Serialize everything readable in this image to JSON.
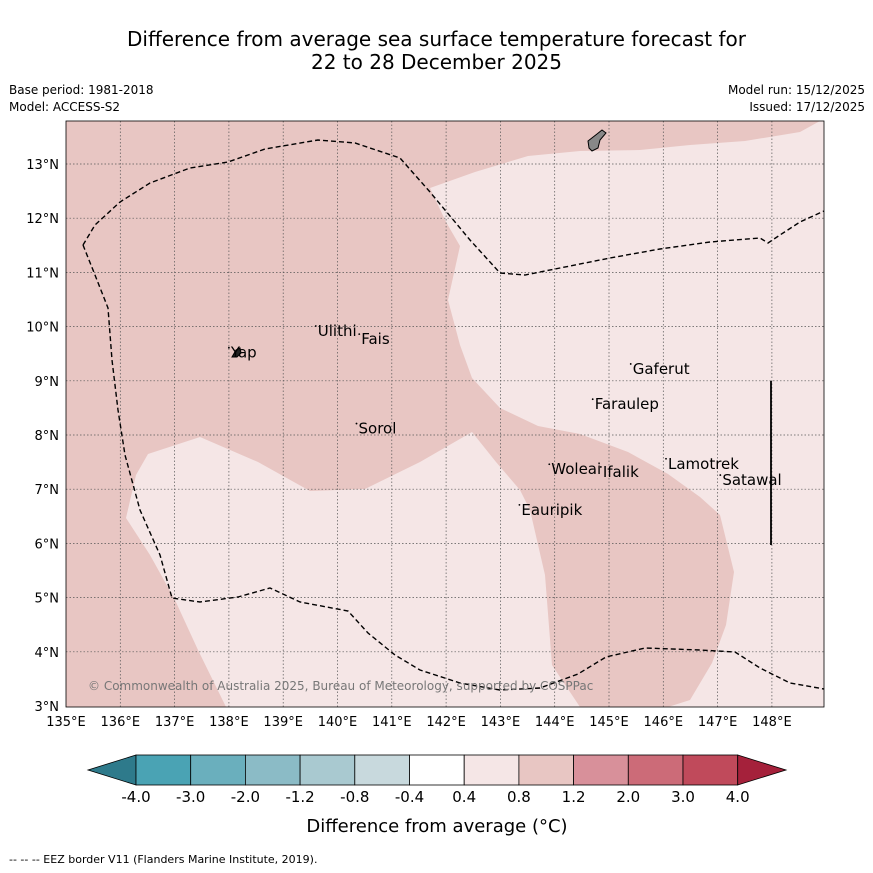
{
  "title": {
    "line1": "Difference from average sea surface temperature forecast for",
    "line2": "22 to 28 December 2025"
  },
  "meta": {
    "base_period": "Base period: 1981-2018",
    "model": "Model: ACCESS-S2",
    "model_run": "Model run: 15/12/2025",
    "issued": "Issued: 17/12/2025"
  },
  "map": {
    "lon_ticks": [
      "135°E",
      "136°E",
      "137°E",
      "138°E",
      "139°E",
      "140°E",
      "141°E",
      "142°E",
      "143°E",
      "144°E",
      "145°E",
      "146°E",
      "147°E",
      "148°E"
    ],
    "lat_ticks": [
      "3°N",
      "4°N",
      "5°N",
      "6°N",
      "7°N",
      "8°N",
      "9°N",
      "10°N",
      "11°N",
      "12°N",
      "13°N"
    ],
    "lon_range": [
      135,
      149
    ],
    "lat_range": [
      3,
      13.8
    ],
    "places": [
      {
        "name": "Yap",
        "lon": 138.0,
        "lat": 9.5
      },
      {
        "name": "Ulithi",
        "lon": 139.6,
        "lat": 9.9
      },
      {
        "name": "Fais",
        "lon": 140.4,
        "lat": 9.75
      },
      {
        "name": "Sorol",
        "lon": 140.35,
        "lat": 8.1
      },
      {
        "name": "Gaferut",
        "lon": 145.4,
        "lat": 9.2
      },
      {
        "name": "Faraulep",
        "lon": 144.7,
        "lat": 8.55
      },
      {
        "name": "Woleai",
        "lon": 143.9,
        "lat": 7.35
      },
      {
        "name": "Ifalik",
        "lon": 144.85,
        "lat": 7.3
      },
      {
        "name": "Lamotrek",
        "lon": 146.05,
        "lat": 7.45
      },
      {
        "name": "Satawal",
        "lon": 147.05,
        "lat": 7.15
      },
      {
        "name": "Eauripik",
        "lon": 143.35,
        "lat": 6.6
      }
    ],
    "copyright": "© Commonwealth of Australia 2025, Bureau of Meteorology, supported by COSPPac"
  },
  "legend": {
    "labels": [
      "-4.0",
      "-3.0",
      "-2.0",
      "-1.2",
      "-0.8",
      "-0.4",
      "0.4",
      "0.8",
      "1.2",
      "2.0",
      "3.0",
      "4.0"
    ],
    "colors": [
      "#2e7a8b",
      "#4aa3b4",
      "#6aafbd",
      "#8bbbc6",
      "#a9c9d0",
      "#c8d9dd",
      "#ffffff",
      "#f5e6e6",
      "#e8c6c3",
      "#d8909a",
      "#cc6b78",
      "#c04a5b",
      "#a5213b"
    ],
    "title": "Difference from average (°C)"
  },
  "footnote": "-- -- -- EEZ border V11 (Flanders Marine Institute, 2019)."
}
